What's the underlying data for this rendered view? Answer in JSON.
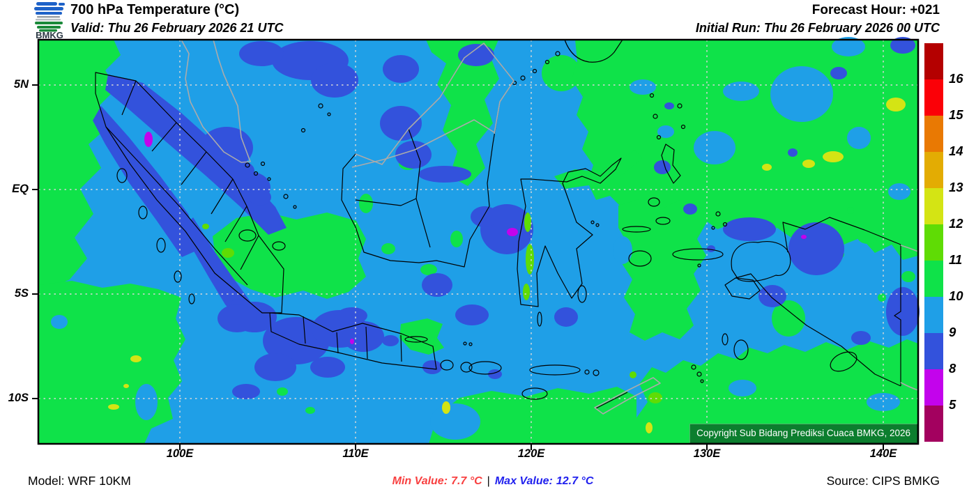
{
  "header": {
    "logo": "BMKG",
    "title": "700 hPa Temperature (°C)",
    "valid": "Valid: Thu 26 February 2026 21 UTC",
    "forecast_hour": "Forecast Hour: +021",
    "initial_run": "Initial Run: Thu 26 February 2026 00 UTC"
  },
  "map": {
    "y_ticks": [
      "5N",
      "EQ",
      "5S",
      "10S"
    ],
    "x_ticks": [
      "100E",
      "110E",
      "120E",
      "130E",
      "140E"
    ],
    "copyright": "Copyright Sub Bidang Prediksi Cuaca BMKG, 2026"
  },
  "colorbar": {
    "labels": [
      "16",
      "15",
      "14",
      "13",
      "12",
      "11",
      "10",
      "9",
      "8",
      "5"
    ],
    "colors": [
      "#B40000",
      "#FB0007",
      "#E97903",
      "#E3AC03",
      "#D4E414",
      "#5FDC05",
      "#0FE249",
      "#1F9FE7",
      "#3352DC",
      "#C303EC",
      "#A3015F"
    ]
  },
  "footer": {
    "model": "Model: WRF 10KM",
    "min_label": "Min Value:",
    "min_value": "7.7 °C",
    "separator": "|",
    "max_label": "Max Value:",
    "max_value": "12.7 °C",
    "source": "Source: CIPS BMKG"
  },
  "colors": {
    "min_text": "#F84040",
    "max_text": "#2121EE",
    "copyright_bg": "#0C7E2E",
    "field_blue": "#1F9FE7",
    "field_royal_blue": "#3352DC",
    "field_green": "#0FE249",
    "field_lime": "#5FDC05",
    "field_yellow_green": "#D4E414",
    "field_magenta": "#C303EC"
  }
}
